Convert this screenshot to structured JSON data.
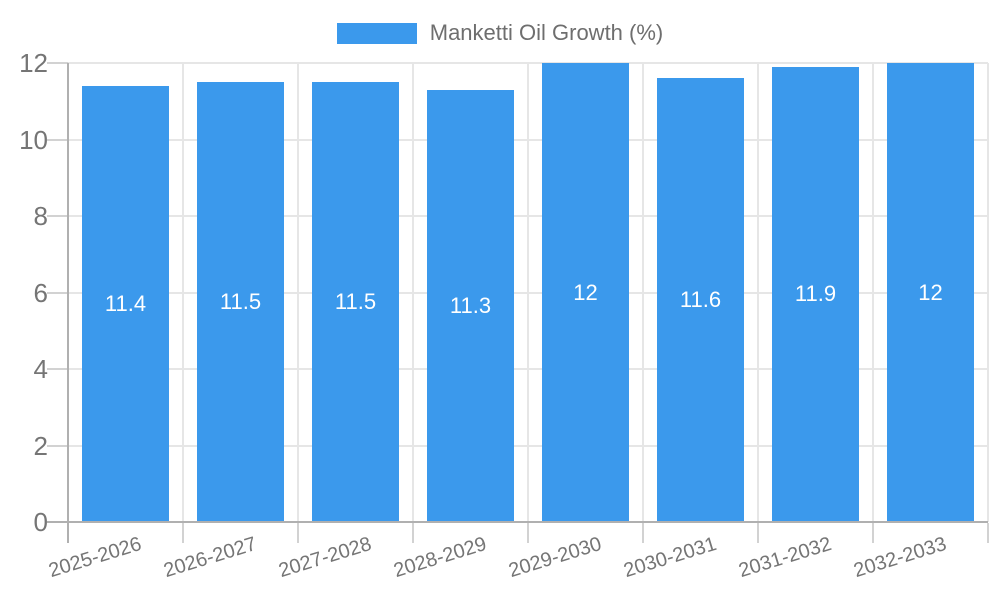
{
  "legend": {
    "label": "Manketti Oil Growth (%)"
  },
  "y_axis": {
    "tick_labels": [
      "0",
      "2",
      "4",
      "6",
      "8",
      "10",
      "12"
    ]
  },
  "chart_data": {
    "type": "bar",
    "title": "Manketti Oil Growth (%)",
    "categories": [
      "2025-2026",
      "2026-2027",
      "2027-2028",
      "2028-2029",
      "2029-2030",
      "2030-2031",
      "2031-2032",
      "2032-2033"
    ],
    "values": [
      11.4,
      11.5,
      11.5,
      11.3,
      12,
      11.6,
      11.9,
      12
    ],
    "bar_labels": [
      "11.4",
      "11.5",
      "11.5",
      "11.3",
      "12",
      "11.6",
      "11.9",
      "12"
    ],
    "xlabel": "",
    "ylabel": "",
    "ylim": [
      0,
      12
    ],
    "ytick_step": 2,
    "grid": true,
    "legend_position": "top",
    "colors": {
      "bar": "#3b99ec",
      "bar_label": "#ffffff",
      "axis": "#b0b0b0",
      "gridline": "#e6e6e6",
      "tick": "#d2d2d2",
      "axis_text": "#757575",
      "legend_text": "#6e6e6e"
    }
  }
}
